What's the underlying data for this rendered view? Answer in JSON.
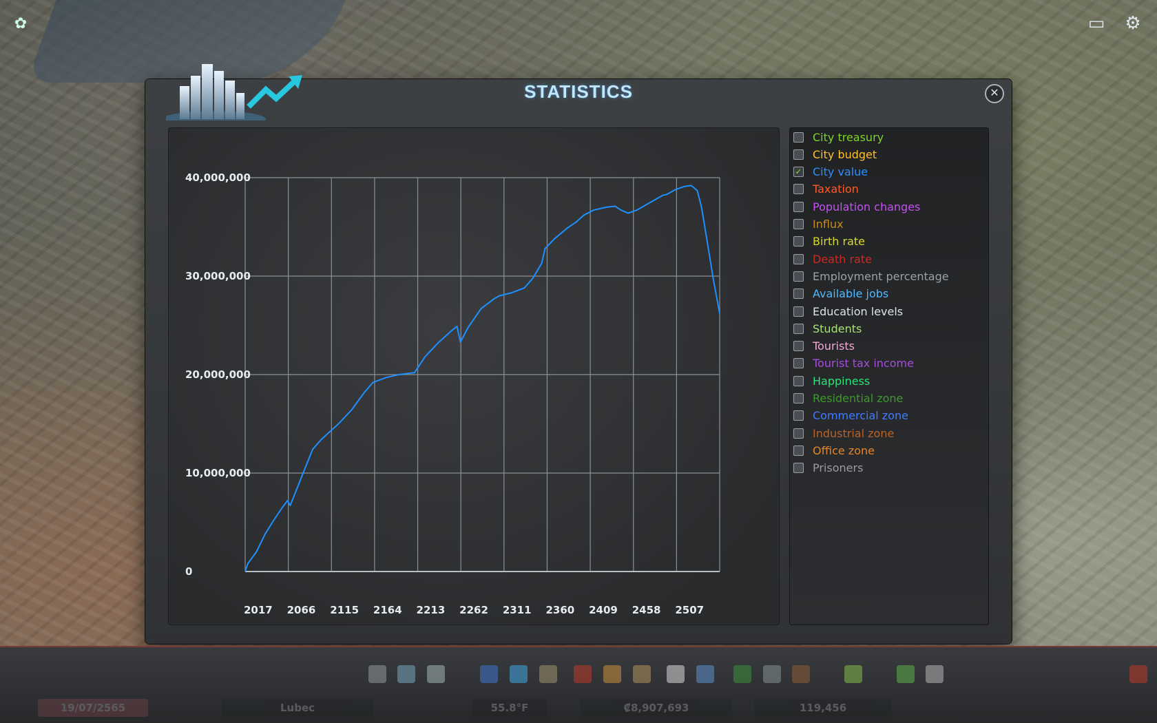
{
  "window": {
    "title": "STATISTICS",
    "close_glyph": "✕"
  },
  "chart_data": {
    "type": "line",
    "title": "",
    "xlabel": "",
    "ylabel": "",
    "x_tick_labels": [
      "2017",
      "2066",
      "2115",
      "2164",
      "2213",
      "2262",
      "2311",
      "2360",
      "2409",
      "2458",
      "2507"
    ],
    "y_tick_labels": [
      "0",
      "10,000,000",
      "20,000,000",
      "30,000,000",
      "40,000,000"
    ],
    "ylim": [
      0,
      40000000
    ],
    "xlim": [
      2017,
      2566
    ],
    "grid": true,
    "series": [
      {
        "name": "City value",
        "color": "#1e90ff",
        "x": [
          2017,
          2020,
          2030,
          2040,
          2050,
          2060,
          2066,
          2069,
          2075,
          2085,
          2095,
          2105,
          2115,
          2125,
          2140,
          2155,
          2165,
          2180,
          2195,
          2213,
          2225,
          2240,
          2255,
          2262,
          2266,
          2275,
          2290,
          2305,
          2311,
          2325,
          2340,
          2350,
          2360,
          2364,
          2375,
          2390,
          2400,
          2409,
          2420,
          2435,
          2445,
          2452,
          2460,
          2470,
          2480,
          2490,
          2500,
          2505,
          2515,
          2525,
          2533,
          2540,
          2545,
          2552,
          2559,
          2566
        ],
        "y": [
          0,
          800000,
          2000000,
          3800000,
          5200000,
          6500000,
          7200000,
          6700000,
          8000000,
          10200000,
          12400000,
          13400000,
          14200000,
          15000000,
          16400000,
          18200000,
          19200000,
          19700000,
          20000000,
          20200000,
          21800000,
          23200000,
          24400000,
          24900000,
          23300000,
          24800000,
          26700000,
          27700000,
          28000000,
          28300000,
          28800000,
          29800000,
          31300000,
          32800000,
          33800000,
          34900000,
          35500000,
          36200000,
          36700000,
          37000000,
          37100000,
          36700000,
          36400000,
          36700000,
          37200000,
          37700000,
          38200000,
          38300000,
          38800000,
          39100000,
          39200000,
          38700000,
          37000000,
          33300000,
          29500000,
          26200000
        ]
      }
    ]
  },
  "legend": [
    {
      "label": "City treasury",
      "color": "#7fd32a",
      "checked": false
    },
    {
      "label": "City budget",
      "color": "#ffbf2f",
      "checked": false
    },
    {
      "label": "City value",
      "color": "#2f8fff",
      "checked": true
    },
    {
      "label": "Taxation",
      "color": "#ff5a2a",
      "checked": false
    },
    {
      "label": "Population changes",
      "color": "#c651f2",
      "checked": false
    },
    {
      "label": "Influx",
      "color": "#c58a1f",
      "checked": false
    },
    {
      "label": "Birth rate",
      "color": "#d9d933",
      "checked": false
    },
    {
      "label": "Death rate",
      "color": "#cc2a22",
      "checked": false
    },
    {
      "label": "Employment percentage",
      "color": "#9aa2a8",
      "checked": false
    },
    {
      "label": "Available jobs",
      "color": "#51b9ff",
      "checked": false
    },
    {
      "label": "Education levels",
      "color": "#dfe3e6",
      "checked": false
    },
    {
      "label": "Students",
      "color": "#a9e27a",
      "checked": false
    },
    {
      "label": "Tourists",
      "color": "#f4a9d8",
      "checked": false
    },
    {
      "label": "Tourist tax income",
      "color": "#a84ce0",
      "checked": false
    },
    {
      "label": "Happiness",
      "color": "#2ee37a",
      "checked": false
    },
    {
      "label": "Residential zone",
      "color": "#3c9a2a",
      "checked": false
    },
    {
      "label": "Commercial zone",
      "color": "#3f7cff",
      "checked": false
    },
    {
      "label": "Industrial zone",
      "color": "#b5642a",
      "checked": false
    },
    {
      "label": "Office zone",
      "color": "#e6862a",
      "checked": false
    },
    {
      "label": "Prisoners",
      "color": "#9c9c9c",
      "checked": false
    }
  ],
  "top_bar": {
    "left_icon": "chirper-icon",
    "right_icons": [
      "card-icon",
      "gear-icon"
    ]
  },
  "bottom_bar": {
    "city_name": "Lubec",
    "date": "19/07/2565",
    "temperature": "55.8°F",
    "money": "₡8,907,693",
    "population": "119,456"
  }
}
